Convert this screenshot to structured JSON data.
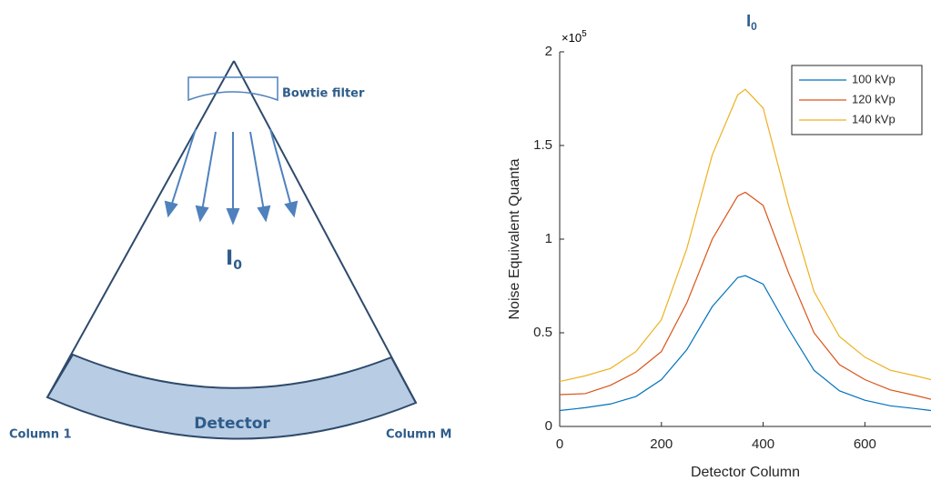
{
  "diagram": {
    "bowtie_label": "Bowtie filter",
    "beam_label": "I",
    "beam_label_subscript": "0",
    "detector_label": "Detector",
    "column_first": "Column 1",
    "column_last": "Column M"
  },
  "chart_data": {
    "type": "line",
    "title": "I",
    "title_subscript": "0",
    "x_label": "Detector Column",
    "y_label": "Noise Equivalent Quanta",
    "y_scale_base": "×10",
    "y_scale_exponent": "5",
    "x": [
      0,
      50,
      100,
      150,
      200,
      250,
      300,
      350,
      365,
      400,
      450,
      500,
      550,
      600,
      650,
      700,
      730
    ],
    "series": [
      {
        "name": "100 kVp",
        "color": "#0072BD",
        "values": [
          8500,
          10000,
          12000,
          16000,
          25000,
          41000,
          64000,
          79500,
          80500,
          76000,
          52000,
          30000,
          19000,
          14000,
          11000,
          9500,
          8500
        ]
      },
      {
        "name": "120 kVp",
        "color": "#D95319",
        "values": [
          17000,
          17500,
          22000,
          29000,
          40000,
          66000,
          100000,
          123000,
          125000,
          118000,
          82000,
          50000,
          33000,
          25000,
          19500,
          16500,
          14500
        ]
      },
      {
        "name": "140 kVp",
        "color": "#EDB120",
        "values": [
          24000,
          27000,
          31000,
          40000,
          57000,
          95000,
          145000,
          177000,
          180000,
          170000,
          118000,
          72000,
          48000,
          37000,
          30000,
          27000,
          25000
        ]
      }
    ],
    "xlim": [
      0,
      730
    ],
    "ylim": [
      0,
      200000
    ],
    "xticks": [
      0,
      200,
      400,
      600
    ],
    "yticks": [
      0,
      {
        "value": 50000,
        "label": "0.5"
      },
      {
        "value": 100000,
        "label": "1"
      },
      {
        "value": 150000,
        "label": "1.5"
      },
      {
        "value": 200000,
        "label": "2"
      }
    ],
    "legend": "upper-right",
    "grid": false
  }
}
